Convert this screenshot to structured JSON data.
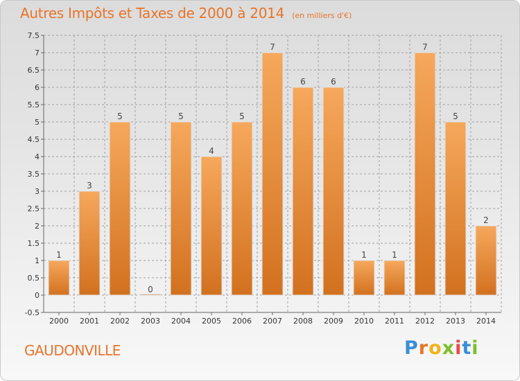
{
  "header": {
    "title": "Autres Impôts et Taxes de 2000 à 2014",
    "subtitle": "(en milliers d'€)"
  },
  "footer": {
    "commune": "GAUDONVILLE",
    "brand_letters": [
      {
        "char": "P",
        "color": "#3a8fd6"
      },
      {
        "char": "r",
        "color": "#e8742a"
      },
      {
        "char": "o",
        "color": "#f2b21a"
      },
      {
        "char": "x",
        "color": "#7cbf2a"
      },
      {
        "char": "i",
        "color": "#e84a4a"
      },
      {
        "char": "t",
        "color": "#3a8fd6"
      },
      {
        "char": "i",
        "color": "#7cbf2a"
      }
    ]
  },
  "colors": {
    "title": "#e8742a",
    "bar_top": "#f6a85c",
    "bar_bottom": "#d2711f",
    "grid": "#a0a0a0",
    "axis_text": "#333333"
  },
  "chart_data": {
    "type": "bar",
    "title": "Autres Impôts et Taxes de 2000 à 2014",
    "subtitle": "(en milliers d'€)",
    "categories": [
      "2000",
      "2001",
      "2002",
      "2003",
      "2004",
      "2005",
      "2006",
      "2007",
      "2008",
      "2009",
      "2010",
      "2011",
      "2012",
      "2013",
      "2014"
    ],
    "values": [
      1,
      3,
      5,
      0,
      5,
      4,
      5,
      7,
      6,
      6,
      1,
      1,
      7,
      5,
      2
    ],
    "value_labels": [
      "1",
      "3",
      "5",
      "0",
      "5",
      "4",
      "5",
      "7",
      "6",
      "6",
      "1",
      "1",
      "7",
      "5",
      "2"
    ],
    "yticks": [
      "-0.5",
      "0",
      "0.5",
      "1",
      "1.5",
      "2",
      "2.5",
      "3",
      "3.5",
      "4",
      "4.5",
      "5",
      "5.5",
      "6",
      "6.5",
      "7",
      "7.5"
    ],
    "ylim": [
      -0.5,
      7.5
    ],
    "grid": true,
    "legend": "none"
  }
}
